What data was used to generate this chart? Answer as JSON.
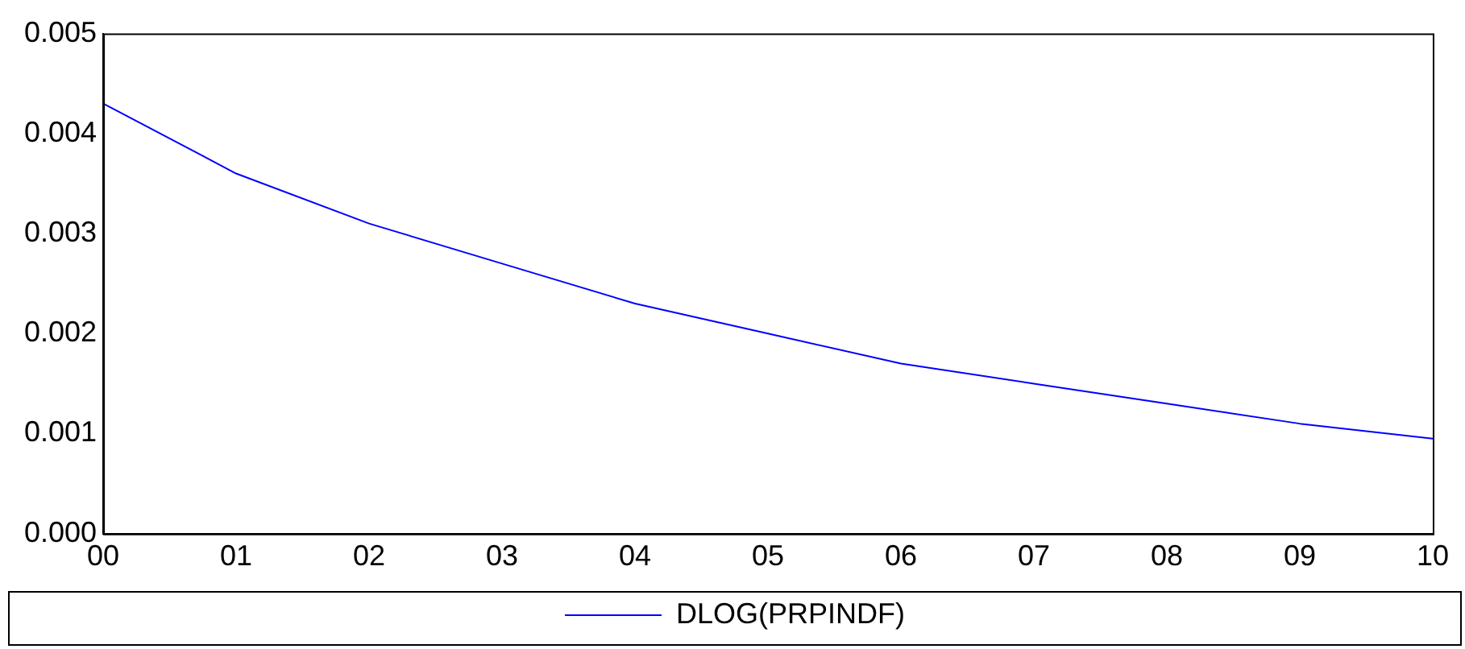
{
  "chart_data": {
    "type": "line",
    "categories": [
      "00",
      "01",
      "02",
      "03",
      "04",
      "05",
      "06",
      "07",
      "08",
      "09",
      "10"
    ],
    "series": [
      {
        "name": "DLOG(PRPINDF)",
        "color": "#0000ff",
        "values": [
          0.0043,
          0.0036,
          0.0031,
          0.0027,
          0.0023,
          0.002,
          0.0017,
          0.0015,
          0.0013,
          0.0011,
          0.00095
        ]
      }
    ],
    "ylim": [
      0,
      0.005
    ],
    "yticks": [
      {
        "value": 0,
        "label": "0.000"
      },
      {
        "value": 0.001,
        "label": "0.001"
      },
      {
        "value": 0.002,
        "label": "0.002"
      },
      {
        "value": 0.003,
        "label": "0.003"
      },
      {
        "value": 0.004,
        "label": "0.004"
      },
      {
        "value": 0.005,
        "label": "0.005"
      }
    ],
    "grid": false,
    "legend": "bottom",
    "marker": "none",
    "line_style": "solid"
  }
}
